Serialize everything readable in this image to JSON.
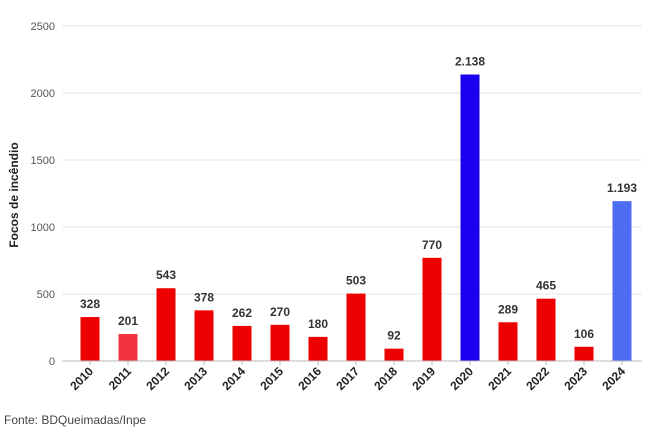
{
  "chart_data": {
    "type": "bar",
    "categories": [
      "2010",
      "2011",
      "2012",
      "2013",
      "2014",
      "2015",
      "2016",
      "2017",
      "2018",
      "2019",
      "2020",
      "2021",
      "2022",
      "2023",
      "2024"
    ],
    "values": [
      328,
      201,
      543,
      378,
      262,
      270,
      180,
      503,
      92,
      770,
      2138,
      289,
      465,
      106,
      1193
    ],
    "data_labels": [
      "328",
      "201",
      "543",
      "378",
      "262",
      "270",
      "180",
      "503",
      "92",
      "770",
      "2.138",
      "289",
      "465",
      "106",
      "1.193"
    ],
    "bar_colors": [
      "#ee0000",
      "#f0333c",
      "#ee0000",
      "#ee0000",
      "#ee0000",
      "#ee0000",
      "#ee0000",
      "#ee0000",
      "#ee0000",
      "#ee0000",
      "#1a00ee",
      "#ee0000",
      "#ee0000",
      "#ee0000",
      "#4d6cf2"
    ],
    "ylabel": "Focos de incêndio",
    "xlabel": "",
    "ylim": [
      0,
      2500
    ],
    "yticks": [
      0,
      500,
      1000,
      1500,
      2000,
      2500
    ],
    "grid": true,
    "legend": "none"
  },
  "source": "Fonte: BDQueimadas/Inpe"
}
